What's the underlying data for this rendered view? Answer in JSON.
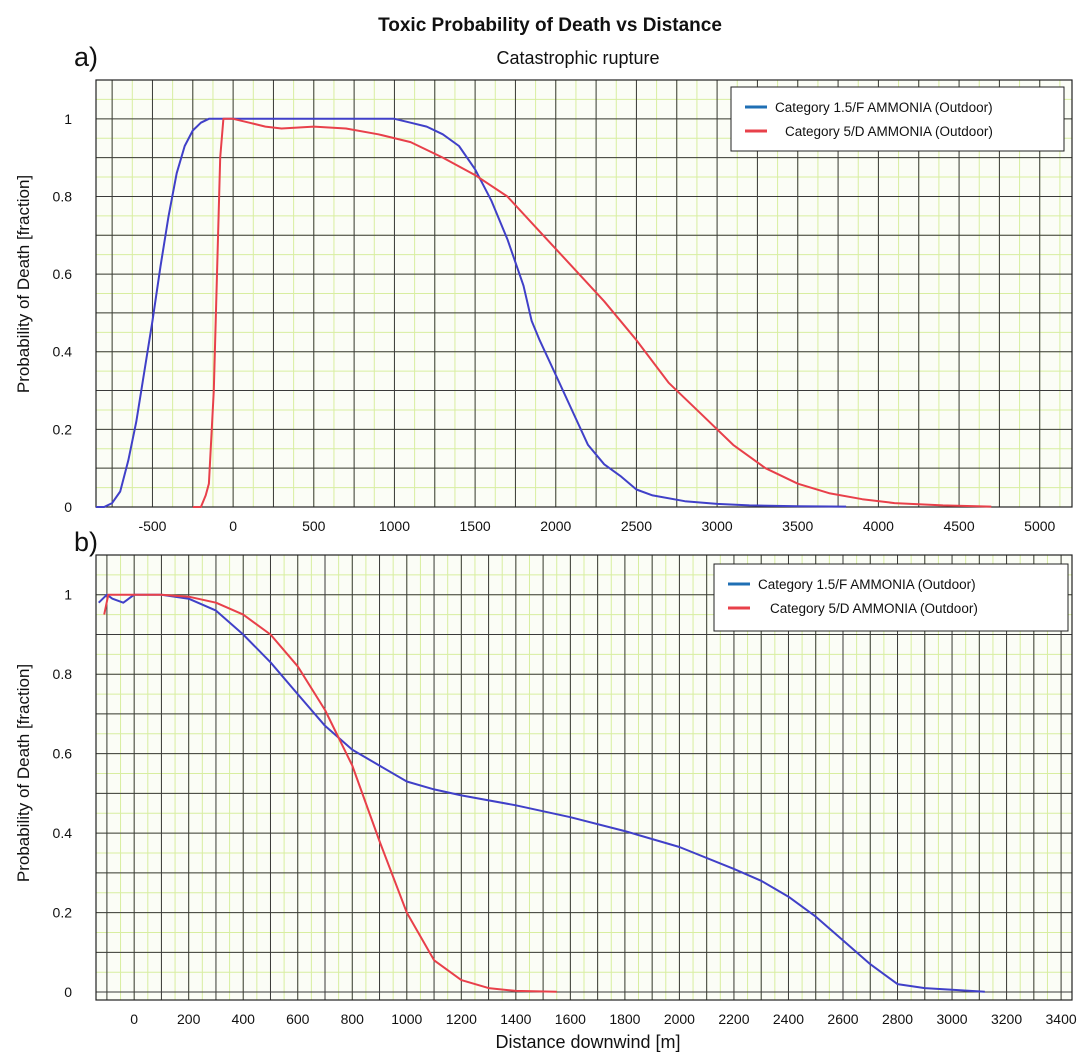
{
  "figure": {
    "title": "Toxic Probability of Death vs Distance",
    "xlabel": "Distance downwind [m]"
  },
  "colors": {
    "blue": "#4040c8",
    "red": "#e8404a",
    "legend_blue": "#1f6fb4",
    "grid": "#3a3a3a",
    "minor_grid": "#d8eea0"
  },
  "chart_data": [
    {
      "panel": "a)",
      "type": "line",
      "subtitle": "Catastrophic rupture",
      "ylabel": "Probability of Death [fraction]",
      "xlim": [
        -850,
        5200
      ],
      "ylim": [
        0,
        1.1
      ],
      "xticks": [
        -500,
        0,
        500,
        1000,
        1500,
        2000,
        2500,
        3000,
        3500,
        4000,
        4500,
        5000
      ],
      "yticks": [
        0,
        0.2,
        0.4,
        0.6,
        0.8,
        1
      ],
      "legend_position": "top-right",
      "series": [
        {
          "name": "Category 1.5/F AMMONIA (Outdoor)",
          "color": "blue",
          "points": [
            [
              -850,
              0
            ],
            [
              -800,
              0
            ],
            [
              -750,
              0.01
            ],
            [
              -700,
              0.04
            ],
            [
              -650,
              0.12
            ],
            [
              -600,
              0.22
            ],
            [
              -550,
              0.35
            ],
            [
              -500,
              0.48
            ],
            [
              -450,
              0.62
            ],
            [
              -400,
              0.75
            ],
            [
              -350,
              0.86
            ],
            [
              -300,
              0.93
            ],
            [
              -250,
              0.97
            ],
            [
              -200,
              0.99
            ],
            [
              -150,
              1
            ],
            [
              -100,
              1
            ],
            [
              0,
              1
            ],
            [
              500,
              1
            ],
            [
              1000,
              1
            ],
            [
              1100,
              0.99
            ],
            [
              1200,
              0.98
            ],
            [
              1300,
              0.96
            ],
            [
              1400,
              0.93
            ],
            [
              1500,
              0.87
            ],
            [
              1600,
              0.79
            ],
            [
              1700,
              0.69
            ],
            [
              1800,
              0.57
            ],
            [
              1850,
              0.48
            ],
            [
              1900,
              0.43
            ],
            [
              2000,
              0.34
            ],
            [
              2100,
              0.25
            ],
            [
              2200,
              0.16
            ],
            [
              2300,
              0.11
            ],
            [
              2400,
              0.08
            ],
            [
              2500,
              0.045
            ],
            [
              2600,
              0.03
            ],
            [
              2800,
              0.015
            ],
            [
              3000,
              0.008
            ],
            [
              3200,
              0.004
            ],
            [
              3500,
              0.002
            ],
            [
              3800,
              0.001
            ]
          ]
        },
        {
          "name": "Category 5/D AMMONIA (Outdoor)",
          "color": "red",
          "points": [
            [
              -250,
              0
            ],
            [
              -200,
              0
            ],
            [
              -170,
              0.03
            ],
            [
              -150,
              0.06
            ],
            [
              -120,
              0.3
            ],
            [
              -100,
              0.6
            ],
            [
              -80,
              0.9
            ],
            [
              -60,
              1
            ],
            [
              0,
              1
            ],
            [
              100,
              0.99
            ],
            [
              200,
              0.98
            ],
            [
              300,
              0.975
            ],
            [
              500,
              0.98
            ],
            [
              700,
              0.975
            ],
            [
              900,
              0.96
            ],
            [
              1100,
              0.94
            ],
            [
              1300,
              0.9
            ],
            [
              1500,
              0.855
            ],
            [
              1700,
              0.8
            ],
            [
              1900,
              0.71
            ],
            [
              2100,
              0.62
            ],
            [
              2300,
              0.53
            ],
            [
              2500,
              0.43
            ],
            [
              2700,
              0.32
            ],
            [
              2900,
              0.24
            ],
            [
              3100,
              0.16
            ],
            [
              3300,
              0.1
            ],
            [
              3500,
              0.06
            ],
            [
              3700,
              0.035
            ],
            [
              3900,
              0.02
            ],
            [
              4100,
              0.01
            ],
            [
              4400,
              0.004
            ],
            [
              4700,
              0.001
            ]
          ]
        }
      ]
    },
    {
      "panel": "b)",
      "type": "line",
      "ylabel": "Probability of Death [fraction]",
      "xlim": [
        -140,
        3440
      ],
      "ylim": [
        -0.02,
        1.1
      ],
      "xticks": [
        0,
        200,
        400,
        600,
        800,
        1000,
        1200,
        1400,
        1600,
        1800,
        2000,
        2200,
        2400,
        2600,
        2800,
        3000,
        3200,
        3400
      ],
      "yticks": [
        0,
        0.2,
        0.4,
        0.6,
        0.8,
        1
      ],
      "legend_position": "top-right",
      "series": [
        {
          "name": "Category 1.5/F AMMONIA (Outdoor)",
          "color": "blue",
          "points": [
            [
              -130,
              0.98
            ],
            [
              -100,
              1
            ],
            [
              -80,
              0.99
            ],
            [
              -40,
              0.98
            ],
            [
              -20,
              0.99
            ],
            [
              0,
              1
            ],
            [
              100,
              1
            ],
            [
              200,
              0.99
            ],
            [
              300,
              0.96
            ],
            [
              400,
              0.9
            ],
            [
              500,
              0.83
            ],
            [
              600,
              0.75
            ],
            [
              700,
              0.67
            ],
            [
              800,
              0.61
            ],
            [
              900,
              0.57
            ],
            [
              1000,
              0.53
            ],
            [
              1100,
              0.51
            ],
            [
              1200,
              0.495
            ],
            [
              1400,
              0.47
            ],
            [
              1600,
              0.44
            ],
            [
              1800,
              0.405
            ],
            [
              2000,
              0.365
            ],
            [
              2200,
              0.31
            ],
            [
              2300,
              0.28
            ],
            [
              2400,
              0.24
            ],
            [
              2500,
              0.19
            ],
            [
              2600,
              0.13
            ],
            [
              2700,
              0.07
            ],
            [
              2800,
              0.02
            ],
            [
              2900,
              0.01
            ],
            [
              3000,
              0.006
            ],
            [
              3120,
              0.001
            ]
          ]
        },
        {
          "name": "Category 5/D AMMONIA (Outdoor)",
          "color": "red",
          "points": [
            [
              -110,
              0.95
            ],
            [
              -95,
              1
            ],
            [
              0,
              1
            ],
            [
              100,
              1
            ],
            [
              200,
              0.995
            ],
            [
              300,
              0.98
            ],
            [
              400,
              0.95
            ],
            [
              500,
              0.9
            ],
            [
              600,
              0.82
            ],
            [
              700,
              0.71
            ],
            [
              800,
              0.57
            ],
            [
              900,
              0.38
            ],
            [
              1000,
              0.2
            ],
            [
              1100,
              0.08
            ],
            [
              1200,
              0.03
            ],
            [
              1300,
              0.01
            ],
            [
              1400,
              0.003
            ],
            [
              1550,
              0.001
            ]
          ]
        }
      ]
    }
  ]
}
